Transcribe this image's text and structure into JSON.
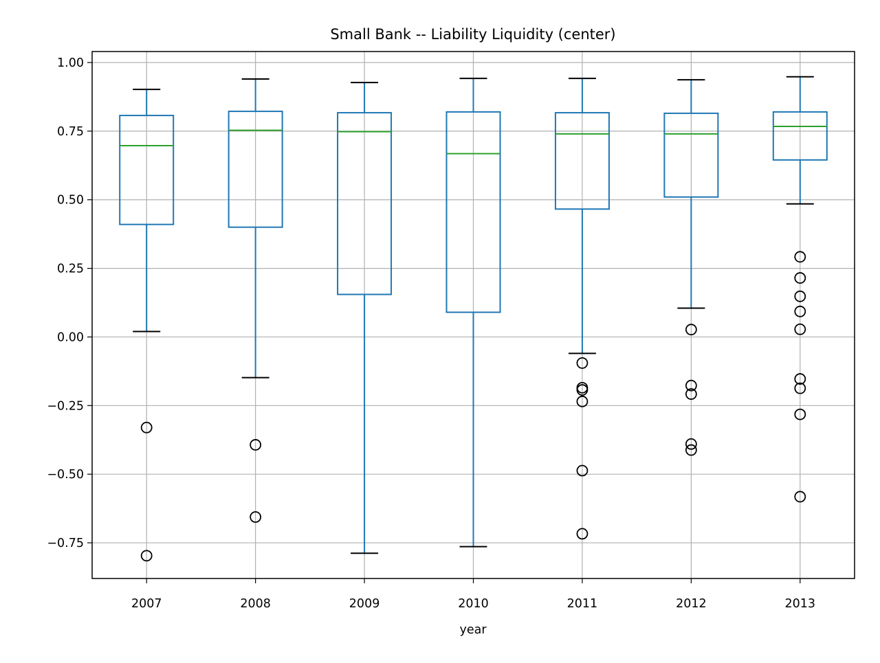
{
  "chart_data": {
    "type": "box",
    "title": "Small Bank -- Liability Liquidity (center)",
    "xlabel": "year",
    "ylabel": "",
    "categories": [
      "2007",
      "2008",
      "2009",
      "2010",
      "2011",
      "2012",
      "2013"
    ],
    "ylim": [
      -0.88,
      1.04
    ],
    "yticks": [
      1.0,
      0.75,
      0.5,
      0.25,
      0.0,
      -0.25,
      -0.5,
      -0.75
    ],
    "ytick_labels": [
      "1.00",
      "0.75",
      "0.50",
      "0.25",
      "0.00",
      "−0.25",
      "−0.50",
      "−0.75"
    ],
    "grid": true,
    "boxes": [
      {
        "category": "2007",
        "whisker_low": 0.02,
        "q1": 0.41,
        "median": 0.697,
        "q3": 0.807,
        "whisker_high": 0.902,
        "outliers": [
          -0.33,
          -0.797
        ]
      },
      {
        "category": "2008",
        "whisker_low": -0.148,
        "q1": 0.4,
        "median": 0.753,
        "q3": 0.822,
        "whisker_high": 0.94,
        "outliers": [
          -0.393,
          -0.656
        ]
      },
      {
        "category": "2009",
        "whisker_low": -0.788,
        "q1": 0.155,
        "median": 0.748,
        "q3": 0.817,
        "whisker_high": 0.927,
        "outliers": []
      },
      {
        "category": "2010",
        "whisker_low": -0.764,
        "q1": 0.09,
        "median": 0.668,
        "q3": 0.82,
        "whisker_high": 0.942,
        "outliers": []
      },
      {
        "category": "2011",
        "whisker_low": -0.06,
        "q1": 0.466,
        "median": 0.74,
        "q3": 0.817,
        "whisker_high": 0.942,
        "outliers": [
          -0.095,
          -0.185,
          -0.193,
          -0.235,
          -0.487,
          -0.717
        ]
      },
      {
        "category": "2012",
        "whisker_low": 0.105,
        "q1": 0.51,
        "median": 0.74,
        "q3": 0.815,
        "whisker_high": 0.937,
        "outliers": [
          0.027,
          -0.177,
          -0.208,
          -0.39,
          -0.412
        ]
      },
      {
        "category": "2013",
        "whisker_low": 0.485,
        "q1": 0.645,
        "median": 0.767,
        "q3": 0.82,
        "whisker_high": 0.948,
        "outliers": [
          0.292,
          0.215,
          0.148,
          0.093,
          0.028,
          -0.153,
          -0.187,
          -0.282,
          -0.582
        ]
      }
    ],
    "colors": {
      "box": "#1f77b4",
      "median": "#2ca02c",
      "cap": "#000000",
      "flier": "#000000",
      "grid": "#b0b0b0",
      "axes": "#000000"
    }
  }
}
